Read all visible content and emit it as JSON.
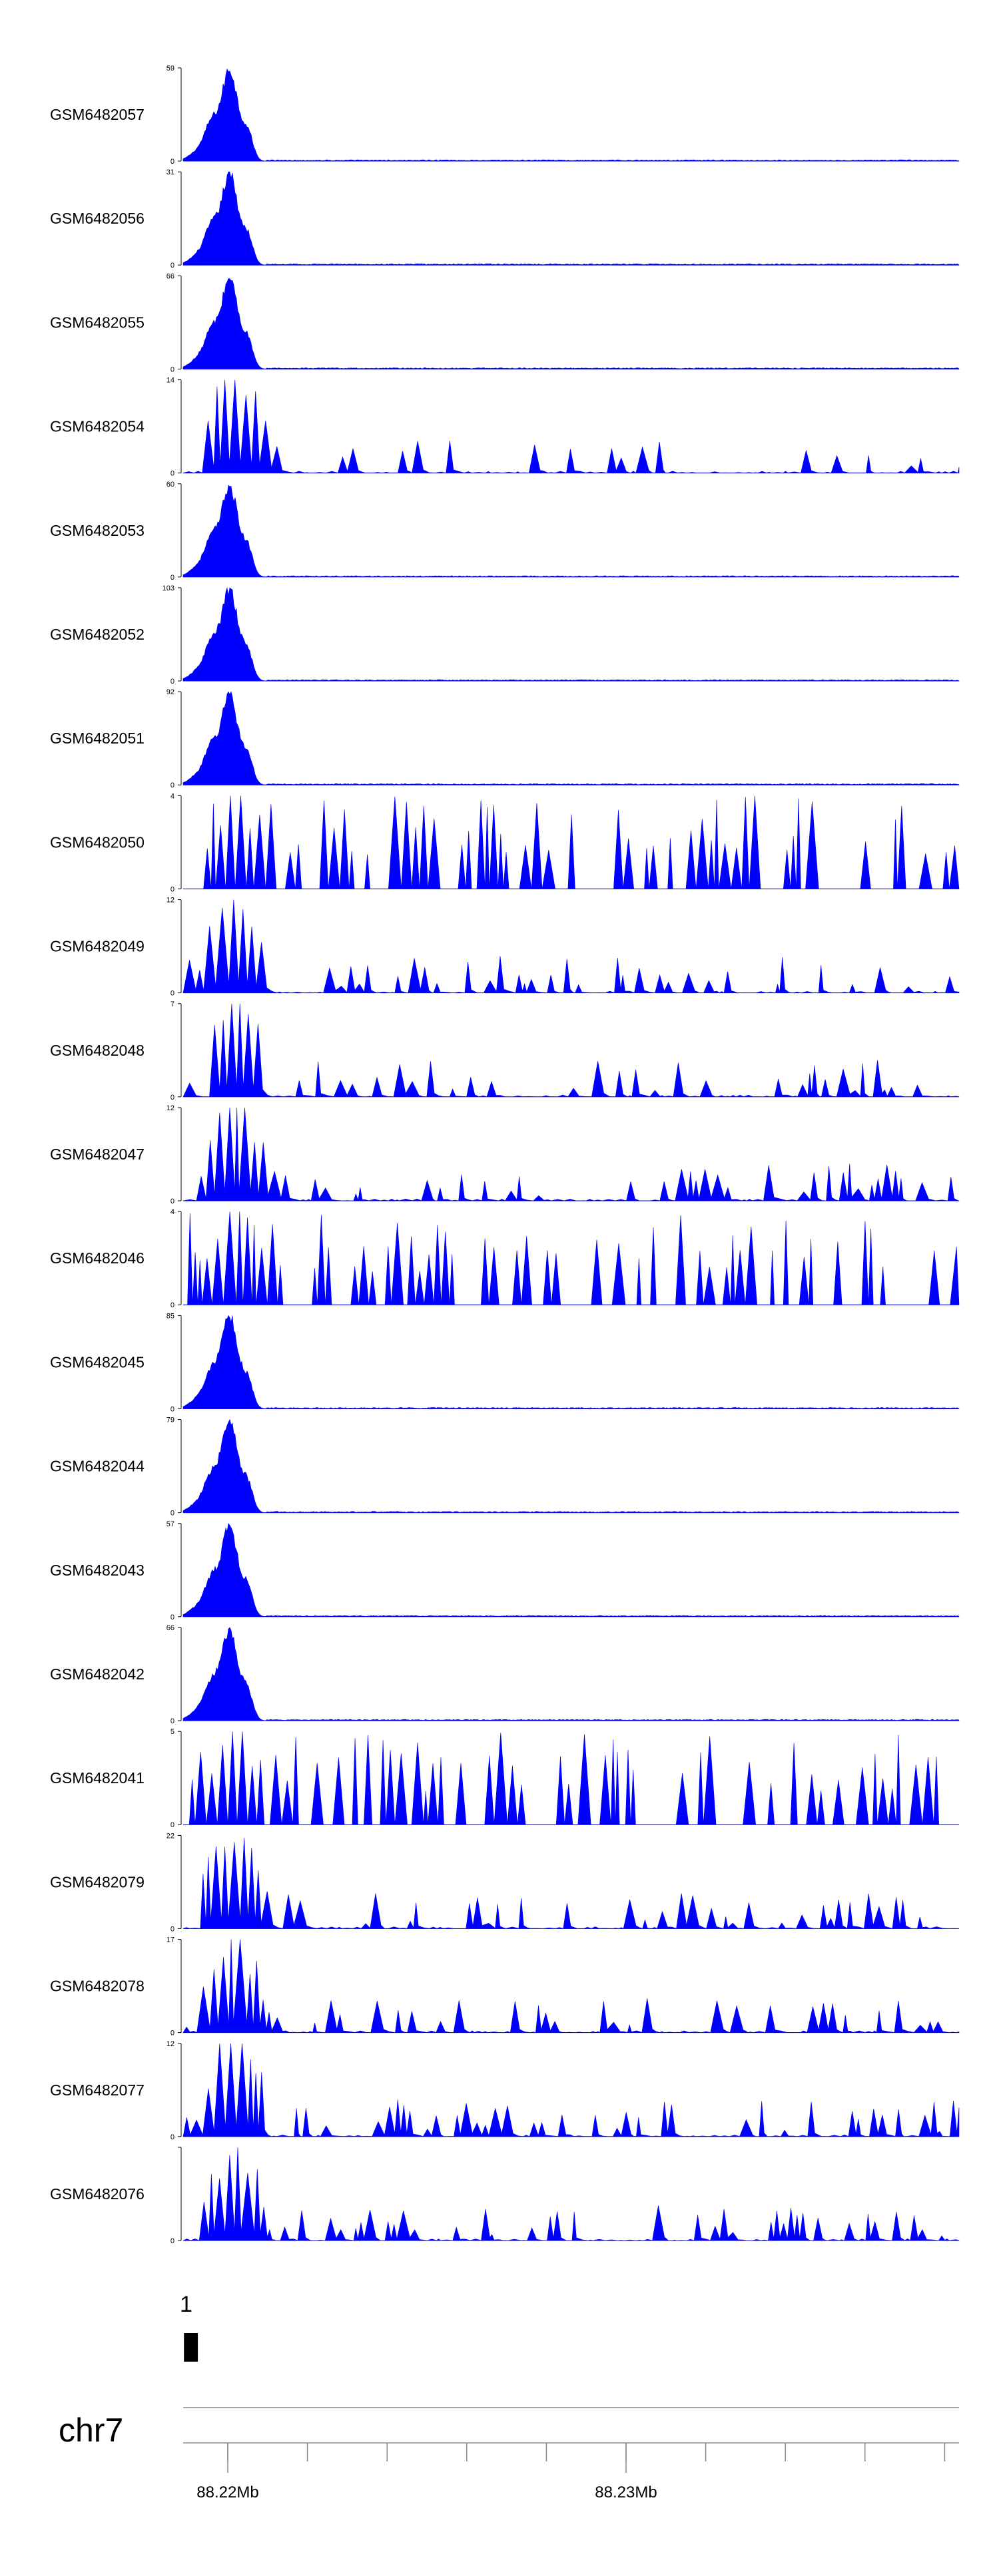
{
  "chart_data": {
    "type": "area",
    "genome": {
      "chromosome": "chr7",
      "x_ticks": [
        {
          "pos": 88220000,
          "label": "88.22Mb"
        },
        {
          "pos": 88230000,
          "label": "88.23Mb"
        }
      ]
    },
    "fill_color": "#0000ff",
    "annotation": {
      "label": "1",
      "start": 88218900,
      "end": 88219250
    },
    "tracks": [
      {
        "name": "GSM6482057",
        "ymax": "59",
        "profile": "peak",
        "peak_h": 59
      },
      {
        "name": "GSM6482056",
        "ymax": "31",
        "profile": "peak",
        "peak_h": 31
      },
      {
        "name": "GSM6482055",
        "ymax": "66",
        "profile": "peak",
        "peak_h": 66
      },
      {
        "name": "GSM6482054",
        "ymax": "14",
        "profile": "sparse",
        "peak_h": 14
      },
      {
        "name": "GSM6482053",
        "ymax": "60",
        "profile": "peak",
        "peak_h": 60
      },
      {
        "name": "GSM6482052",
        "ymax": "103",
        "profile": "peak",
        "peak_h": 103
      },
      {
        "name": "GSM6482051",
        "ymax": "92",
        "profile": "peak",
        "peak_h": 92
      },
      {
        "name": "GSM6482050",
        "ymax": "4",
        "profile": "dense",
        "peak_h": 4
      },
      {
        "name": "GSM6482049",
        "ymax": "12",
        "profile": "medium",
        "peak_h": 12
      },
      {
        "name": "GSM6482048",
        "ymax": "7",
        "profile": "medium",
        "peak_h": 7
      },
      {
        "name": "GSM6482047",
        "ymax": "12",
        "profile": "medium",
        "peak_h": 12
      },
      {
        "name": "GSM6482046",
        "ymax": "4",
        "profile": "dense",
        "peak_h": 4
      },
      {
        "name": "GSM6482045",
        "ymax": "85",
        "profile": "peak",
        "peak_h": 85
      },
      {
        "name": "GSM6482044",
        "ymax": "79",
        "profile": "peak",
        "peak_h": 79
      },
      {
        "name": "GSM6482043",
        "ymax": "57",
        "profile": "peak",
        "peak_h": 57
      },
      {
        "name": "GSM6482042",
        "ymax": "66",
        "profile": "peak",
        "peak_h": 66
      },
      {
        "name": "GSM6482041",
        "ymax": "5",
        "profile": "dense",
        "peak_h": 5
      },
      {
        "name": "GSM6482079",
        "ymax": "22",
        "profile": "medium",
        "peak_h": 22
      },
      {
        "name": "GSM6482078",
        "ymax": "17",
        "profile": "medium",
        "peak_h": 17
      },
      {
        "name": "GSM6482077",
        "ymax": "12",
        "profile": "medium",
        "peak_h": 12
      },
      {
        "name": "GSM6482076",
        "ymax": "",
        "profile": "medium",
        "peak_h": 10
      }
    ]
  }
}
